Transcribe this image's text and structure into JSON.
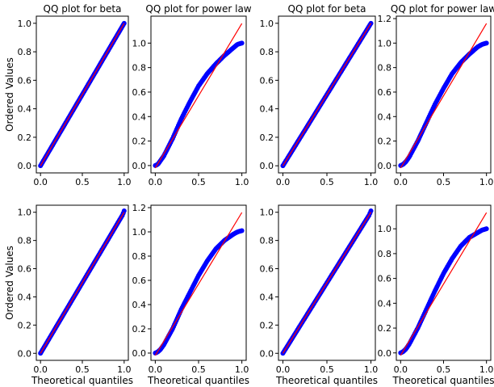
{
  "figure": {
    "ylabel": "Ordered Values",
    "xlabel": "Theoretical quantiles"
  },
  "colors": {
    "points": "#0000ff",
    "fit_line": "#ff0000",
    "axes": "#000000"
  },
  "chart_data": [
    {
      "type": "scatter",
      "title": "QQ plot for beta",
      "row": 0,
      "col": 0,
      "xlim": [
        -0.05,
        1.05
      ],
      "ylim": [
        -0.05,
        1.05
      ],
      "xticks": [
        "0.0",
        "0.5",
        "1.0"
      ],
      "xtick_values": [
        0,
        0.5,
        1
      ],
      "yticks": [
        "0.0",
        "0.2",
        "0.4",
        "0.6",
        "0.8",
        "1.0"
      ],
      "ytick_values": [
        0,
        0.2,
        0.4,
        0.6,
        0.8,
        1.0
      ],
      "ylabel": "Ordered Values",
      "xlabel": "",
      "points": {
        "x": [
          0.0,
          0.02,
          0.05,
          0.1,
          0.2,
          0.3,
          0.4,
          0.5,
          0.6,
          0.7,
          0.8,
          0.9,
          0.95,
          0.98,
          1.0
        ],
        "y": [
          0.0,
          0.02,
          0.05,
          0.1,
          0.2,
          0.3,
          0.4,
          0.5,
          0.6,
          0.7,
          0.8,
          0.9,
          0.95,
          0.98,
          1.0
        ]
      },
      "fit_line": {
        "x": [
          0,
          1
        ],
        "y": [
          0,
          1
        ]
      }
    },
    {
      "type": "scatter",
      "title": "QQ plot for power law",
      "row": 0,
      "col": 1,
      "xlim": [
        -0.05,
        1.05
      ],
      "ylim": [
        -0.06,
        1.22
      ],
      "xticks": [
        "0.0",
        "0.5",
        "1.0"
      ],
      "xtick_values": [
        0,
        0.5,
        1
      ],
      "yticks": [
        "0.0",
        "0.2",
        "0.4",
        "0.6",
        "0.8",
        "1.0"
      ],
      "ytick_values": [
        0,
        0.2,
        0.4,
        0.6,
        0.8,
        1.0
      ],
      "ylabel": "",
      "xlabel": "",
      "points": {
        "x": [
          0.0,
          0.03,
          0.06,
          0.1,
          0.2,
          0.3,
          0.4,
          0.5,
          0.6,
          0.7,
          0.8,
          0.9,
          0.95,
          1.0
        ],
        "y": [
          0.0,
          0.01,
          0.04,
          0.08,
          0.22,
          0.38,
          0.52,
          0.65,
          0.75,
          0.83,
          0.9,
          0.96,
          0.99,
          1.0
        ]
      },
      "fit_line": {
        "x": [
          0,
          1
        ],
        "y": [
          -0.02,
          1.16
        ]
      }
    },
    {
      "type": "scatter",
      "title": "QQ plot for beta",
      "row": 0,
      "col": 2,
      "xlim": [
        -0.05,
        1.05
      ],
      "ylim": [
        -0.05,
        1.05
      ],
      "xticks": [
        "0.0",
        "0.5",
        "1.0"
      ],
      "xtick_values": [
        0,
        0.5,
        1
      ],
      "yticks": [
        "0.0",
        "0.2",
        "0.4",
        "0.6",
        "0.8",
        "1.0"
      ],
      "ytick_values": [
        0,
        0.2,
        0.4,
        0.6,
        0.8,
        1.0
      ],
      "ylabel": "",
      "xlabel": "",
      "points": {
        "x": [
          0.0,
          0.02,
          0.05,
          0.1,
          0.2,
          0.3,
          0.4,
          0.5,
          0.6,
          0.7,
          0.8,
          0.9,
          0.95,
          0.98,
          1.0
        ],
        "y": [
          0.0,
          0.02,
          0.05,
          0.1,
          0.2,
          0.3,
          0.4,
          0.5,
          0.6,
          0.7,
          0.8,
          0.9,
          0.95,
          0.98,
          1.0
        ]
      },
      "fit_line": {
        "x": [
          0,
          1
        ],
        "y": [
          0,
          1
        ]
      }
    },
    {
      "type": "scatter",
      "title": "QQ plot for power law",
      "row": 0,
      "col": 3,
      "xlim": [
        -0.05,
        1.05
      ],
      "ylim": [
        -0.06,
        1.22
      ],
      "xticks": [
        "0.0",
        "0.5",
        "1.0"
      ],
      "xtick_values": [
        0,
        0.5,
        1
      ],
      "yticks": [
        "0.0",
        "0.2",
        "0.4",
        "0.6",
        "0.8",
        "1.0",
        "1.2"
      ],
      "ytick_values": [
        0,
        0.2,
        0.4,
        0.6,
        0.8,
        1.0,
        1.2
      ],
      "ylabel": "",
      "xlabel": "",
      "points": {
        "x": [
          0.0,
          0.03,
          0.06,
          0.1,
          0.2,
          0.3,
          0.4,
          0.5,
          0.6,
          0.7,
          0.8,
          0.9,
          0.95,
          1.0
        ],
        "y": [
          0.0,
          0.01,
          0.03,
          0.07,
          0.2,
          0.35,
          0.5,
          0.63,
          0.75,
          0.84,
          0.91,
          0.97,
          0.99,
          1.0
        ]
      },
      "fit_line": {
        "x": [
          0,
          1
        ],
        "y": [
          -0.02,
          1.16
        ]
      }
    },
    {
      "type": "scatter",
      "title": "",
      "row": 1,
      "col": 0,
      "xlim": [
        -0.05,
        1.05
      ],
      "ylim": [
        -0.05,
        1.05
      ],
      "xticks": [
        "0.0",
        "0.5",
        "1.0"
      ],
      "xtick_values": [
        0,
        0.5,
        1
      ],
      "yticks": [
        "0.0",
        "0.2",
        "0.4",
        "0.6",
        "0.8",
        "1.0"
      ],
      "ytick_values": [
        0,
        0.2,
        0.4,
        0.6,
        0.8,
        1.0
      ],
      "ylabel": "Ordered Values",
      "xlabel": "Theoretical quantiles",
      "points": {
        "x": [
          0.0,
          0.02,
          0.05,
          0.1,
          0.2,
          0.3,
          0.4,
          0.5,
          0.6,
          0.7,
          0.8,
          0.9,
          0.95,
          0.98,
          1.0
        ],
        "y": [
          0.0,
          0.02,
          0.05,
          0.1,
          0.2,
          0.3,
          0.4,
          0.5,
          0.6,
          0.7,
          0.8,
          0.9,
          0.95,
          0.98,
          1.01
        ]
      },
      "fit_line": {
        "x": [
          0,
          1
        ],
        "y": [
          0,
          1
        ]
      }
    },
    {
      "type": "scatter",
      "title": "",
      "row": 1,
      "col": 1,
      "xlim": [
        -0.05,
        1.05
      ],
      "ylim": [
        -0.06,
        1.22
      ],
      "xticks": [
        "0.0",
        "0.5",
        "1.0"
      ],
      "xtick_values": [
        0,
        0.5,
        1
      ],
      "yticks": [
        "0.0",
        "0.2",
        "0.4",
        "0.6",
        "0.8",
        "1.0",
        "1.2"
      ],
      "ytick_values": [
        0,
        0.2,
        0.4,
        0.6,
        0.8,
        1.0,
        1.2
      ],
      "ylabel": "",
      "xlabel": "Theoretical quantiles",
      "points": {
        "x": [
          0.0,
          0.03,
          0.06,
          0.1,
          0.2,
          0.3,
          0.4,
          0.5,
          0.6,
          0.7,
          0.8,
          0.9,
          0.95,
          1.0
        ],
        "y": [
          0.0,
          0.01,
          0.03,
          0.07,
          0.2,
          0.36,
          0.5,
          0.64,
          0.76,
          0.86,
          0.93,
          0.98,
          1.0,
          1.01
        ]
      },
      "fit_line": {
        "x": [
          0,
          1
        ],
        "y": [
          -0.02,
          1.16
        ]
      }
    },
    {
      "type": "scatter",
      "title": "",
      "row": 1,
      "col": 2,
      "xlim": [
        -0.05,
        1.05
      ],
      "ylim": [
        -0.05,
        1.05
      ],
      "xticks": [
        "0.0",
        "0.5",
        "1.0"
      ],
      "xtick_values": [
        0,
        0.5,
        1
      ],
      "yticks": [
        "0.0",
        "0.2",
        "0.4",
        "0.6",
        "0.8",
        "1.0"
      ],
      "ytick_values": [
        0,
        0.2,
        0.4,
        0.6,
        0.8,
        1.0
      ],
      "ylabel": "",
      "xlabel": "Theoretical quantiles",
      "points": {
        "x": [
          0.0,
          0.02,
          0.05,
          0.1,
          0.2,
          0.3,
          0.4,
          0.5,
          0.6,
          0.7,
          0.8,
          0.9,
          0.95,
          0.98,
          1.0
        ],
        "y": [
          0.0,
          0.02,
          0.05,
          0.1,
          0.2,
          0.3,
          0.4,
          0.5,
          0.6,
          0.7,
          0.8,
          0.9,
          0.95,
          0.98,
          1.01
        ]
      },
      "fit_line": {
        "x": [
          0,
          1
        ],
        "y": [
          0,
          1
        ]
      }
    },
    {
      "type": "scatter",
      "title": "",
      "row": 1,
      "col": 3,
      "xlim": [
        -0.05,
        1.05
      ],
      "ylim": [
        -0.06,
        1.19
      ],
      "xticks": [
        "0.0",
        "0.5",
        "1.0"
      ],
      "xtick_values": [
        0,
        0.5,
        1
      ],
      "yticks": [
        "0.0",
        "0.2",
        "0.4",
        "0.6",
        "0.8",
        "1.0"
      ],
      "ytick_values": [
        0,
        0.2,
        0.4,
        0.6,
        0.8,
        1.0
      ],
      "ylabel": "",
      "xlabel": "Theoretical quantiles",
      "points": {
        "x": [
          0.0,
          0.03,
          0.06,
          0.1,
          0.2,
          0.3,
          0.4,
          0.5,
          0.6,
          0.7,
          0.8,
          0.9,
          0.95,
          1.0
        ],
        "y": [
          0.0,
          0.01,
          0.03,
          0.07,
          0.2,
          0.35,
          0.5,
          0.64,
          0.76,
          0.86,
          0.93,
          0.97,
          0.99,
          1.0
        ]
      },
      "fit_line": {
        "x": [
          0,
          1
        ],
        "y": [
          -0.02,
          1.13
        ]
      }
    }
  ]
}
